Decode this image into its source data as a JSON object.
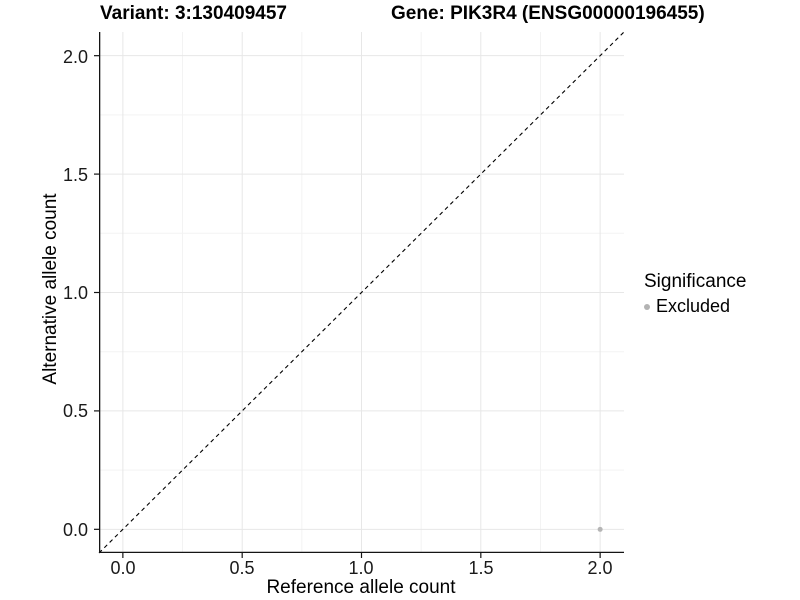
{
  "titles": {
    "variant": "Variant: 3:130409457",
    "gene": "Gene: PIK3R4 (ENSG00000196455)"
  },
  "axes": {
    "x_label": "Reference allele count",
    "y_label": "Alternative allele count",
    "x_tick_labels": [
      "0.0",
      "0.5",
      "1.0",
      "1.5",
      "2.0"
    ],
    "y_tick_labels": [
      "0.0",
      "0.5",
      "1.0",
      "1.5",
      "2.0"
    ]
  },
  "legend": {
    "title": "Significance",
    "items": [
      {
        "label": "Excluded",
        "color": "#b3b3b3"
      }
    ]
  },
  "colors": {
    "grid_major": "#e7e7e7",
    "grid_minor": "#f3f3f3",
    "axis_line": "#141414",
    "tick_mark": "#141414",
    "reference_line": "#000000",
    "point": "#b5b5b5",
    "background": "#ffffff"
  },
  "chart_data": {
    "type": "scatter",
    "title": "Variant: 3:130409457 | Gene: PIK3R4 (ENSG00000196455)",
    "xlabel": "Reference allele count",
    "ylabel": "Alternative allele count",
    "xlim": [
      -0.1,
      2.1
    ],
    "ylim": [
      -0.1,
      2.1
    ],
    "x_ticks": [
      0.0,
      0.5,
      1.0,
      1.5,
      2.0
    ],
    "y_ticks": [
      0.0,
      0.5,
      1.0,
      1.5,
      2.0
    ],
    "x_minor_ticks": [
      0.25,
      0.75,
      1.25,
      1.75
    ],
    "y_minor_ticks": [
      0.25,
      0.75,
      1.25,
      1.75
    ],
    "grid": true,
    "legend_position": "right",
    "legend_title": "Significance",
    "reference_line": {
      "style": "dashed",
      "from": [
        -0.1,
        -0.1
      ],
      "to": [
        2.1,
        2.1
      ]
    },
    "series": [
      {
        "name": "Excluded",
        "color": "#b5b5b5",
        "points": [
          [
            2.0,
            0.0
          ]
        ]
      }
    ]
  }
}
